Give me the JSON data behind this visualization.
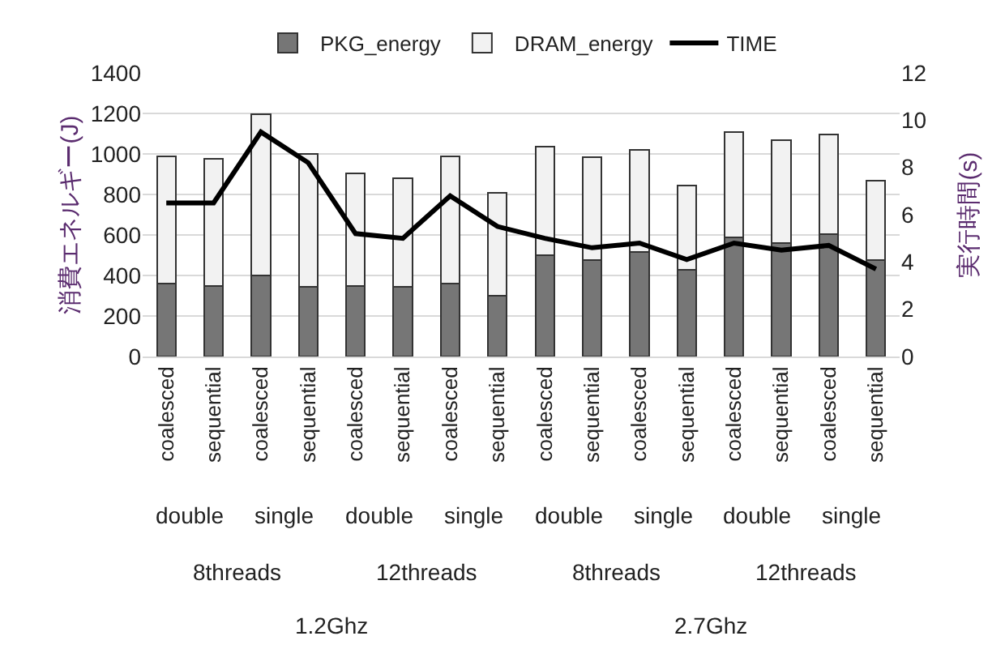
{
  "chart_data": {
    "type": "bar",
    "stacked": true,
    "ylabel": "消費エネルギー(J)",
    "y2label": "実行時間(s)",
    "categories": [
      "coalesced",
      "sequential",
      "coalesced",
      "sequential",
      "coalesced",
      "sequential",
      "coalesced",
      "sequential",
      "coalesced",
      "sequential",
      "coalesced",
      "sequential",
      "coalesced",
      "sequential",
      "coalesced",
      "sequential"
    ],
    "series": [
      {
        "name": "PKG_energy",
        "color": "#767676",
        "values": [
          360,
          350,
          400,
          345,
          350,
          345,
          360,
          300,
          500,
          475,
          515,
          430,
          590,
          560,
          605,
          475
        ]
      },
      {
        "name": "DRAM_energy",
        "color": "#f2f2f2",
        "values": [
          630,
          625,
          795,
          655,
          555,
          535,
          630,
          510,
          535,
          510,
          505,
          415,
          520,
          510,
          490,
          395
        ]
      },
      {
        "name": "TIME",
        "type": "line",
        "axis": "y2",
        "color": "#000000",
        "values": [
          6.5,
          6.5,
          9.5,
          8.2,
          5.2,
          5.0,
          6.8,
          5.5,
          5.0,
          4.6,
          4.8,
          4.1,
          4.8,
          4.5,
          4.7,
          3.7
        ]
      }
    ],
    "ylim": [
      0,
      1400
    ],
    "yticks": [
      0,
      200,
      400,
      600,
      800,
      1000,
      1200,
      1400
    ],
    "y2lim": [
      0,
      12
    ],
    "y2ticks": [
      0,
      2,
      4,
      6,
      8,
      10,
      12
    ],
    "grid": "y",
    "legend": "top",
    "marker": "none",
    "annotations": [
      "double",
      "single",
      "double",
      "single",
      "double",
      "single",
      "double",
      "single",
      "8threads",
      "12threads",
      "8threads",
      "12threads",
      "1.2Ghz",
      "2.7Ghz"
    ]
  }
}
